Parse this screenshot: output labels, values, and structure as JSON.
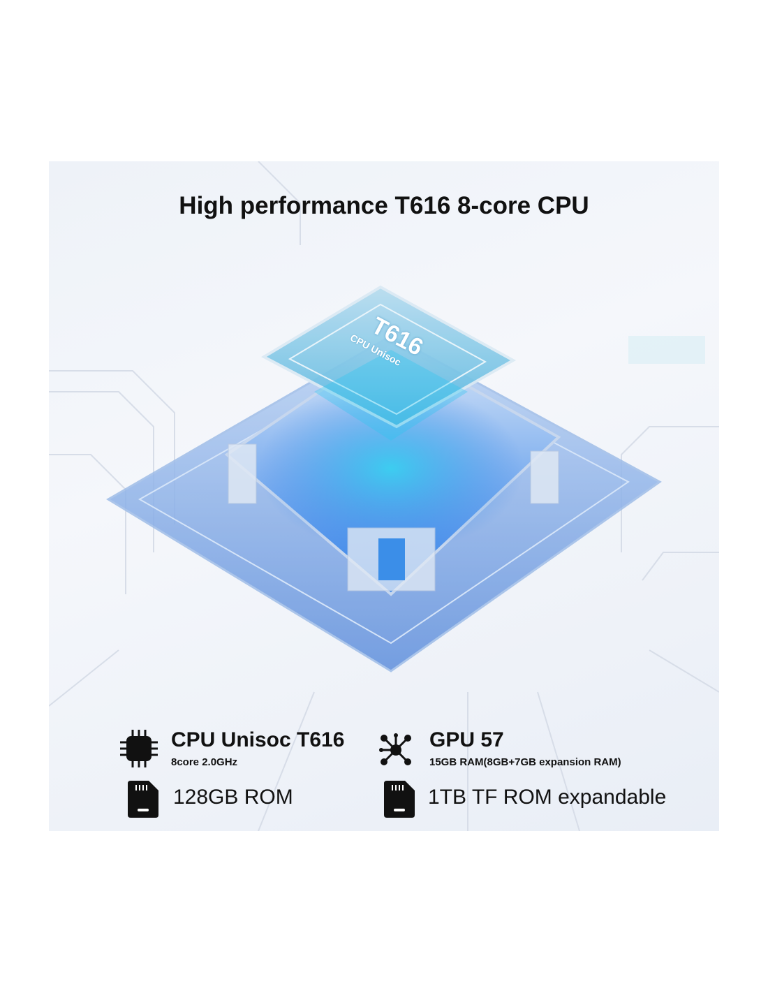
{
  "title": "High performance T616 8-core CPU",
  "chip": {
    "model": "T616",
    "subtitle": "CPU Unisoc"
  },
  "features": [
    {
      "icon": "cpu-chip-icon",
      "title": "CPU Unisoc T616",
      "subtitle": "8core 2.0GHz"
    },
    {
      "icon": "gpu-network-icon",
      "title": "GPU 57",
      "subtitle": "15GB RAM(8GB+7GB expansion RAM)"
    },
    {
      "icon": "sd-card-icon",
      "text": "128GB ROM"
    },
    {
      "icon": "sd-card-icon",
      "text": "1TB TF ROM expandable"
    }
  ],
  "colors": {
    "accent": "#3a8fe0",
    "text": "#111111",
    "background": "#eef2f8"
  }
}
